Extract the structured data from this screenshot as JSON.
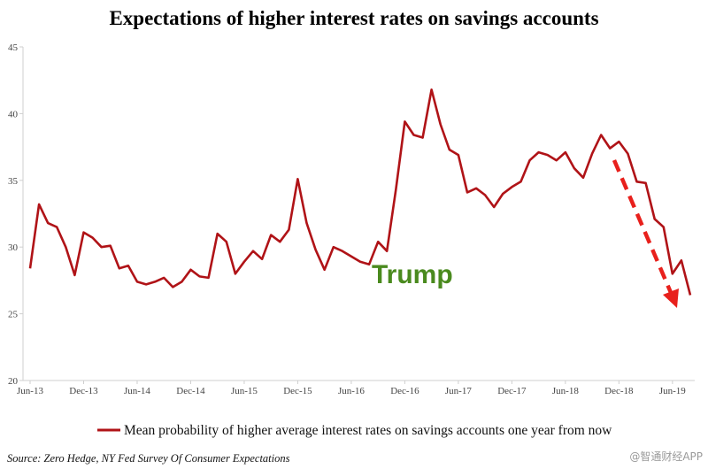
{
  "chart_data": {
    "type": "line",
    "title": "Expectations of  higher interest rates on savings accounts",
    "xlabel": "",
    "ylabel": "",
    "ylim": [
      20,
      45
    ],
    "yticks": [
      20,
      25,
      30,
      35,
      40,
      45
    ],
    "x_tick_labels": [
      "Jun-13",
      "Dec-13",
      "Jun-14",
      "Dec-14",
      "Jun-15",
      "Dec-15",
      "Jun-16",
      "Dec-16",
      "Jun-17",
      "Dec-17",
      "Jun-18",
      "Dec-18",
      "Jun-19"
    ],
    "grid": false,
    "series": [
      {
        "name": "Mean probability of higher average interest rates on savings accounts one year from now",
        "color": "#b01317",
        "values": [
          28.4,
          33.2,
          31.8,
          31.5,
          30.0,
          27.9,
          31.1,
          30.7,
          30.0,
          30.1,
          28.4,
          28.6,
          27.4,
          27.2,
          27.4,
          27.7,
          27.0,
          27.4,
          28.3,
          27.8,
          27.7,
          31.0,
          30.4,
          28.0,
          28.9,
          29.7,
          29.1,
          30.9,
          30.4,
          31.3,
          35.1,
          31.8,
          29.8,
          28.3,
          30.0,
          29.7,
          29.3,
          28.9,
          28.7,
          30.4,
          29.7,
          34.3,
          39.4,
          38.4,
          38.2,
          41.8,
          39.2,
          37.3,
          36.9,
          34.1,
          34.4,
          33.9,
          33.0,
          34.0,
          34.5,
          34.9,
          36.5,
          37.1,
          36.9,
          36.5,
          37.1,
          35.9,
          35.2,
          37.0,
          38.4,
          37.4,
          37.9,
          37.0,
          34.9,
          34.8,
          32.1,
          31.5,
          28.0,
          29.0,
          26.4
        ]
      }
    ],
    "annotations": [
      {
        "text": "Trump",
        "color": "#4a8a1e"
      },
      {
        "text": "",
        "type": "dashed-arrow",
        "color": "#e8201c"
      }
    ],
    "legend_position": "bottom",
    "source": "Source: Zero Hedge, NY Fed Survey Of Consumer Expectations"
  },
  "watermark": "@智通财经APP"
}
